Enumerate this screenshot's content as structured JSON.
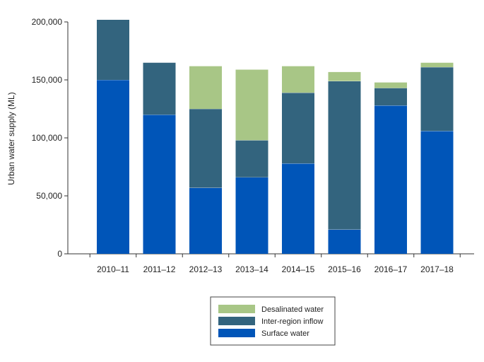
{
  "chart_data": {
    "type": "bar",
    "stacked": true,
    "ylabel": "Urban water supply (ML)",
    "xlabel": "",
    "ylim": [
      0,
      200000
    ],
    "yticks": [
      0,
      50000,
      100000,
      150000,
      200000
    ],
    "ytick_labels": [
      "0",
      "50,000",
      "100,000",
      "150,000",
      "200,000"
    ],
    "grid": false,
    "legend_position": "bottom-center",
    "categories": [
      "2010–11",
      "2011–12",
      "2012–13",
      "2013–14",
      "2014–15",
      "2015–16",
      "2016–17",
      "2017–18"
    ],
    "series": [
      {
        "name": "Surface water",
        "color": "#0055b8",
        "values": [
          150000,
          120000,
          57000,
          66000,
          78000,
          21000,
          128000,
          106000
        ]
      },
      {
        "name": "Inter-region inflow",
        "color": "#33647e",
        "values": [
          52000,
          45000,
          68000,
          32000,
          61000,
          128000,
          15000,
          55000
        ]
      },
      {
        "name": "Desalinated water",
        "color": "#a8c686",
        "values": [
          0,
          0,
          37000,
          61000,
          23000,
          8000,
          5000,
          4000
        ]
      }
    ],
    "legend_order": [
      "Desalinated water",
      "Inter-region inflow",
      "Surface water"
    ]
  }
}
